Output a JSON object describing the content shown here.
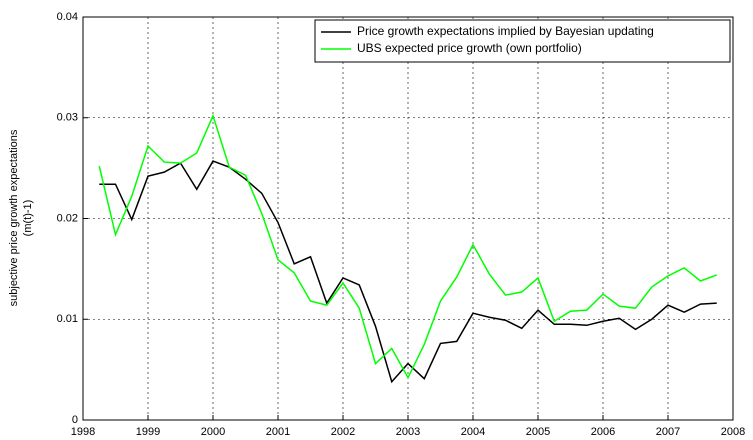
{
  "chart_data": {
    "type": "line",
    "ylabel": [
      "subjective price growth expectations",
      "(m(t)-1)"
    ],
    "x": [
      1998.25,
      1998.5,
      1998.75,
      1999,
      1999.25,
      1999.5,
      1999.75,
      2000,
      2000.25,
      2000.5,
      2000.75,
      2001,
      2001.25,
      2001.5,
      2001.75,
      2002,
      2002.25,
      2002.5,
      2002.75,
      2003,
      2003.25,
      2003.5,
      2003.75,
      2004,
      2004.25,
      2004.5,
      2004.75,
      2005,
      2005.25,
      2005.5,
      2005.75,
      2006,
      2006.25,
      2006.5,
      2006.75,
      2007,
      2007.25,
      2007.5,
      2007.75
    ],
    "series": [
      {
        "name": "Price growth expectations implied by Bayesian updating",
        "color": "#000000",
        "values": [
          0.0234,
          0.0234,
          0.0199,
          0.0242,
          0.0246,
          0.0255,
          0.0229,
          0.0257,
          0.0251,
          0.0239,
          0.0225,
          0.0196,
          0.0155,
          0.0162,
          0.0116,
          0.0141,
          0.0134,
          0.0093,
          0.0038,
          0.0056,
          0.0041,
          0.0076,
          0.0078,
          0.0106,
          0.0102,
          0.0099,
          0.0091,
          0.0109,
          0.0095,
          0.0095,
          0.0094,
          0.0098,
          0.0101,
          0.009,
          0.01,
          0.0114,
          0.0107,
          0.0115,
          0.0116
        ]
      },
      {
        "name": "UBS expected price growth (own portfolio)",
        "color": "#00ff00",
        "values": [
          0.0252,
          0.0184,
          0.0222,
          0.0272,
          0.0256,
          0.0255,
          0.0265,
          0.0302,
          0.0251,
          0.0243,
          0.0205,
          0.0159,
          0.0146,
          0.0118,
          0.0114,
          0.0136,
          0.0111,
          0.0056,
          0.0071,
          0.0042,
          0.0075,
          0.0118,
          0.0142,
          0.0174,
          0.0145,
          0.0124,
          0.0127,
          0.0141,
          0.0098,
          0.0108,
          0.0109,
          0.0125,
          0.0113,
          0.0111,
          0.0132,
          0.0143,
          0.0151,
          0.0138,
          0.0144
        ]
      }
    ],
    "xlim": [
      1998,
      2008
    ],
    "xticks": [
      1998,
      1999,
      2000,
      2001,
      2002,
      2003,
      2004,
      2005,
      2006,
      2007,
      2008
    ],
    "ylim": [
      0,
      0.04
    ],
    "yticks": [
      0,
      0.01,
      0.02,
      0.03,
      0.04
    ],
    "grid": true,
    "legend": "upper right"
  }
}
